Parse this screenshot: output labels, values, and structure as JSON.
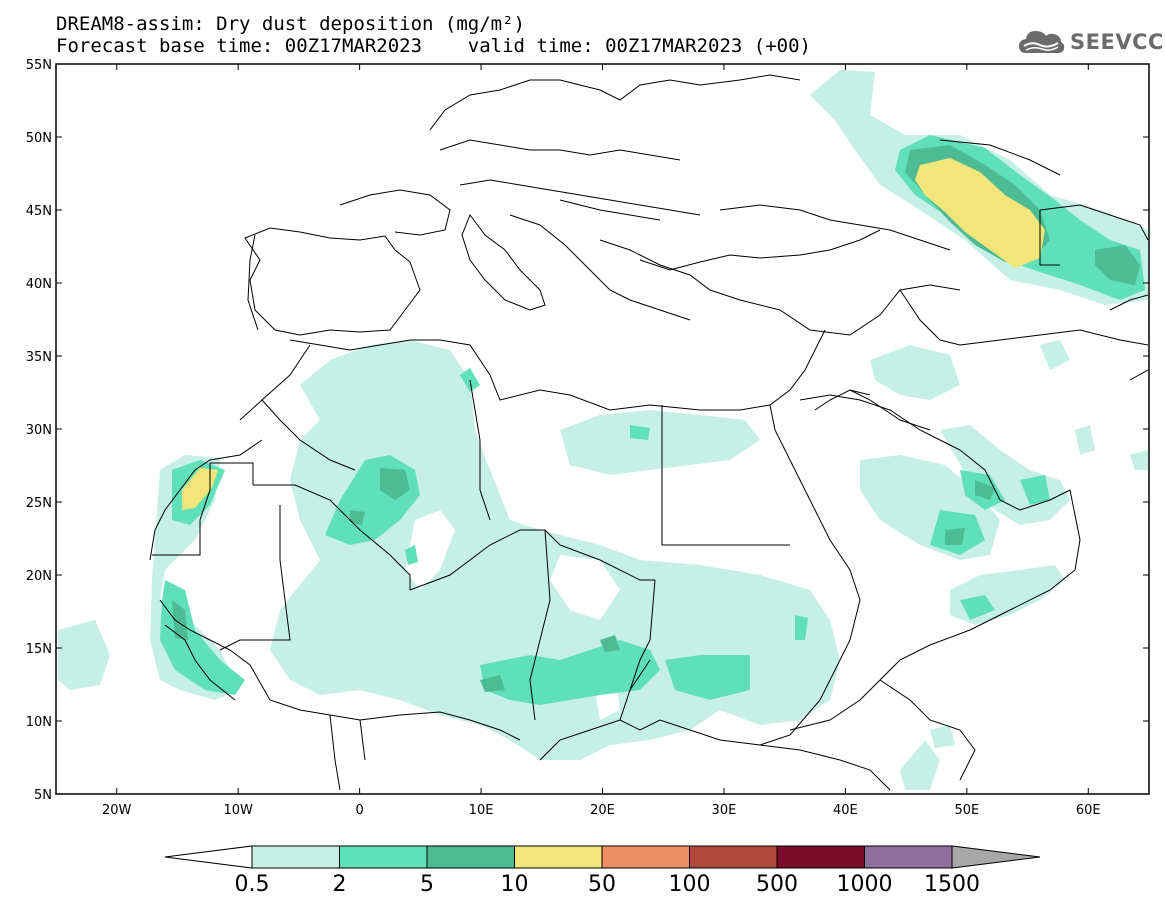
{
  "title_line1": "DREAM8-assim: Dry dust deposition (mg/m²)",
  "title_line2": "Forecast base time: 00Z17MAR2023    valid time: 00Z17MAR2023 (+00)",
  "logo_text": "SEEVCCC",
  "map": {
    "lon_range": [
      -25,
      65
    ],
    "lat_range": [
      5,
      55
    ],
    "lat_labels": [
      "55N",
      "50N",
      "45N",
      "40N",
      "35N",
      "30N",
      "25N",
      "20N",
      "15N",
      "10N",
      "5N"
    ],
    "lat_values": [
      55,
      50,
      45,
      40,
      35,
      30,
      25,
      20,
      15,
      10,
      5
    ],
    "lon_labels": [
      "20W",
      "10W",
      "0",
      "10E",
      "20E",
      "30E",
      "40E",
      "50E",
      "60E"
    ],
    "lon_values": [
      -20,
      -10,
      0,
      10,
      20,
      30,
      40,
      50,
      60
    ]
  },
  "legend": {
    "levels": [
      "0.5",
      "2",
      "5",
      "10",
      "50",
      "100",
      "500",
      "1000",
      "1500"
    ],
    "colors": [
      "#c6efe6",
      "#5fe0b8",
      "#4dbb93",
      "#f2e57a",
      "#ec8e66",
      "#b04a3e",
      "#7a0d2a",
      "#8f6f9e"
    ],
    "under_color": "#ffffff",
    "over_color": "#a8a8a8"
  },
  "colors": {
    "lvl1": "#c6efe6",
    "lvl2": "#5fe0b8",
    "lvl3": "#4dbb93",
    "lvl4": "#f2e57a"
  }
}
